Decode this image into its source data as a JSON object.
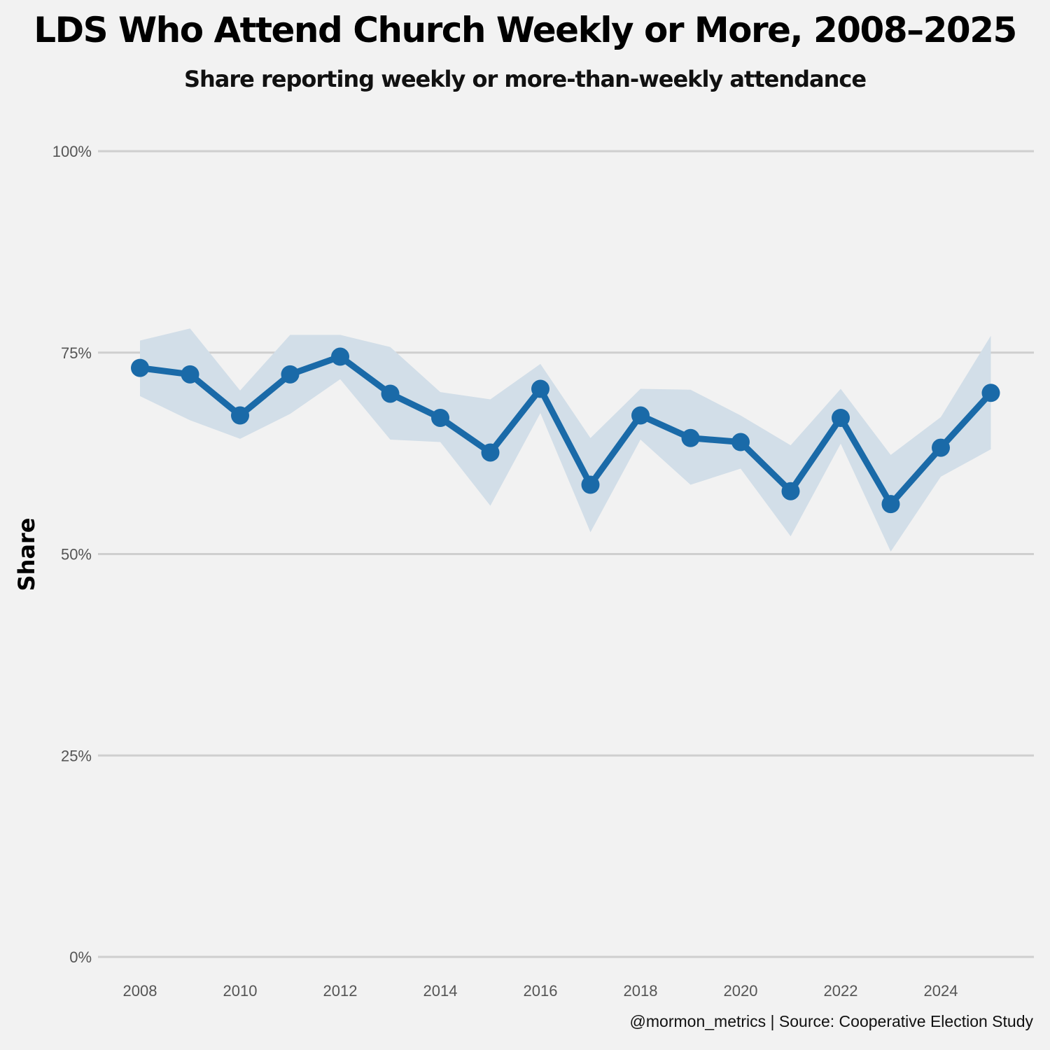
{
  "chart_data": {
    "type": "line",
    "title": "LDS Who Attend Church Weekly or More, 2008–2025",
    "subtitle": "Share reporting weekly or more-than-weekly attendance",
    "xlabel": "",
    "ylabel": "Share",
    "caption": "@mormon_metrics | Source: Cooperative Election Study",
    "xlim": [
      2007.6,
      2025.9
    ],
    "ylim": [
      0,
      100
    ],
    "x_ticks": [
      2008,
      2010,
      2012,
      2014,
      2016,
      2018,
      2020,
      2022,
      2024
    ],
    "y_ticks": [
      0,
      25,
      50,
      75,
      100
    ],
    "y_tick_labels": [
      "0%",
      "25%",
      "50%",
      "75%",
      "100%"
    ],
    "grid": true,
    "x": [
      2008,
      2009,
      2010,
      2011,
      2012,
      2013,
      2014,
      2015,
      2016,
      2017,
      2018,
      2019,
      2020,
      2021,
      2022,
      2023,
      2024,
      2025
    ],
    "series": [
      {
        "name": "Weekly or more",
        "color": "#1a6aa8",
        "values": [
          73.1,
          72.3,
          67.2,
          72.3,
          74.5,
          69.9,
          66.9,
          62.6,
          70.5,
          58.6,
          67.2,
          64.4,
          63.9,
          57.8,
          66.9,
          56.2,
          63.2,
          70.0
        ],
        "ci_upper": [
          76.5,
          78.0,
          70.3,
          77.2,
          77.2,
          75.7,
          70.1,
          69.2,
          73.6,
          64.4,
          70.5,
          70.4,
          67.2,
          63.5,
          70.5,
          62.3,
          67.0,
          77.1
        ],
        "ci_lower": [
          69.6,
          66.6,
          64.3,
          67.4,
          71.7,
          64.2,
          63.9,
          56.0,
          67.5,
          52.7,
          64.2,
          58.6,
          60.6,
          52.2,
          63.7,
          50.3,
          59.6,
          63.0
        ]
      }
    ],
    "band_color": "#d2dee8",
    "grid_color": "#cfcfcf"
  }
}
